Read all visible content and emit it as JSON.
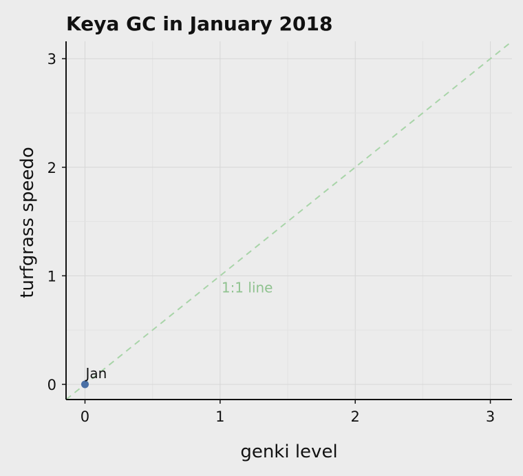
{
  "chart_data": {
    "type": "scatter",
    "title": "Keya GC in January 2018",
    "xlabel": "genki level",
    "ylabel": "turfgrass speedo",
    "xlim": [
      -0.14,
      3.16
    ],
    "ylim": [
      -0.14,
      3.16
    ],
    "xticks": [
      "0",
      "1",
      "2",
      "3"
    ],
    "yticks": [
      "0",
      "1",
      "2",
      "3"
    ],
    "grid": true,
    "points": [
      {
        "label": "Jan",
        "x": 0,
        "y": 0,
        "color": "#4a6fa5"
      }
    ],
    "reference_line": {
      "label": "1:1 line",
      "slope": 1,
      "intercept": 0,
      "style": "dashed",
      "color": "#a8d4a8"
    }
  }
}
